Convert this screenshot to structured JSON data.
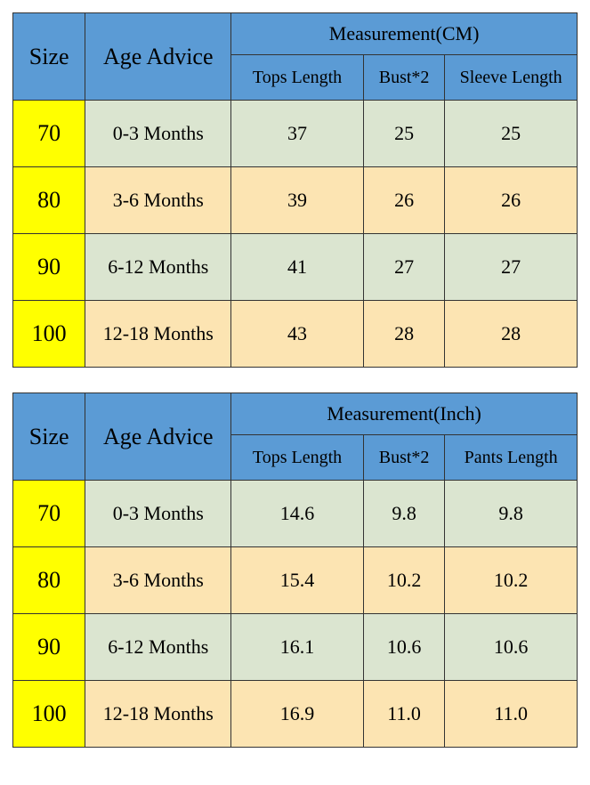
{
  "colors": {
    "header_bg": "#5b9bd5",
    "size_bg": "#ffff00",
    "row_even_bg": "#dbe5d0",
    "row_odd_bg": "#fce4b2",
    "border": "#333333",
    "text": "#000000"
  },
  "fonts": {
    "family": "Georgia, Times New Roman, serif",
    "header_main_pt": 26,
    "header_sub_pt": 20,
    "cell_pt": 22
  },
  "tables": [
    {
      "headers": {
        "size": "Size",
        "age": "Age Advice",
        "measurement": "Measurement(CM)",
        "cols": [
          "Tops Length",
          "Bust*2",
          "Sleeve Length"
        ]
      },
      "rows": [
        {
          "size": "70",
          "age": "0-3 Months",
          "vals": [
            "37",
            "25",
            "25"
          ]
        },
        {
          "size": "80",
          "age": "3-6 Months",
          "vals": [
            "39",
            "26",
            "26"
          ]
        },
        {
          "size": "90",
          "age": "6-12 Months",
          "vals": [
            "41",
            "27",
            "27"
          ]
        },
        {
          "size": "100",
          "age": "12-18 Months",
          "vals": [
            "43",
            "28",
            "28"
          ]
        }
      ]
    },
    {
      "headers": {
        "size": "Size",
        "age": "Age Advice",
        "measurement": "Measurement(Inch)",
        "cols": [
          "Tops Length",
          "Bust*2",
          "Pants Length"
        ]
      },
      "rows": [
        {
          "size": "70",
          "age": "0-3 Months",
          "vals": [
            "14.6",
            "9.8",
            "9.8"
          ]
        },
        {
          "size": "80",
          "age": "3-6 Months",
          "vals": [
            "15.4",
            "10.2",
            "10.2"
          ]
        },
        {
          "size": "90",
          "age": "6-12 Months",
          "vals": [
            "16.1",
            "10.6",
            "10.6"
          ]
        },
        {
          "size": "100",
          "age": "12-18 Months",
          "vals": [
            "16.9",
            "11.0",
            "11.0"
          ]
        }
      ]
    }
  ]
}
